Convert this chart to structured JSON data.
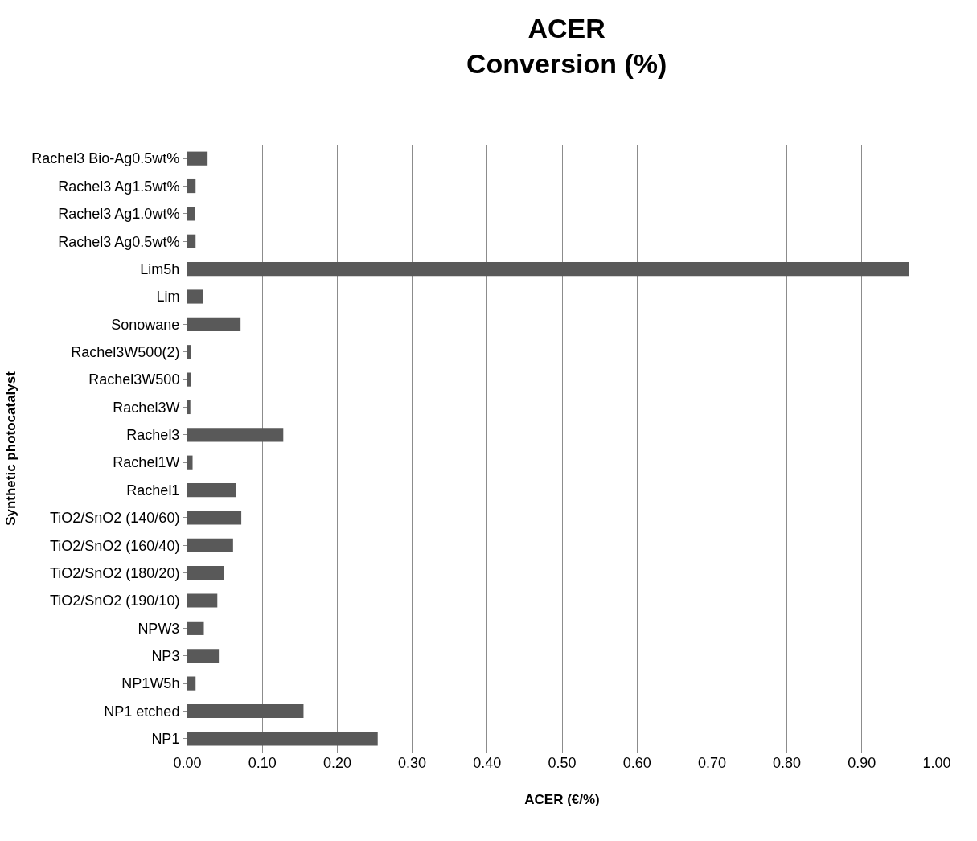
{
  "chart_data": {
    "type": "bar",
    "orientation": "horizontal",
    "title": "ACER\nConversion (%)",
    "xlabel": "ACER (€/%)",
    "ylabel": "Synthetic photocatalyst",
    "categories": [
      "Rachel3 Bio-Ag0.5wt%",
      "Rachel3 Ag1.5wt%",
      "Rachel3 Ag1.0wt%",
      "Rachel3 Ag0.5wt%",
      "Lim5h",
      "Lim",
      "Sonowane",
      "Rachel3W500(2)",
      "Rachel3W500",
      "Rachel3W",
      "Rachel3",
      "Rachel1W",
      "Rachel1",
      "TiO2/SnO2 (140/60)",
      "TiO2/SnO2 (160/40)",
      "TiO2/SnO2 (180/20)",
      "TiO2/SnO2 (190/10)",
      "NPW3",
      "NP3",
      "NP1W5h",
      "NP1 etched",
      "NP1"
    ],
    "values": [
      0.027,
      0.011,
      0.01,
      0.011,
      0.963,
      0.021,
      0.071,
      0.005,
      0.005,
      0.004,
      0.128,
      0.007,
      0.065,
      0.072,
      0.061,
      0.049,
      0.04,
      0.022,
      0.042,
      0.011,
      0.155,
      0.254
    ],
    "color": "#595959",
    "xlim": [
      0,
      1.0
    ],
    "xticks": [
      {
        "value": 0,
        "label": "0.00"
      },
      {
        "value": 0.1,
        "label": "0.10"
      },
      {
        "value": 0.2,
        "label": "0.20"
      },
      {
        "value": 0.3,
        "label": "0.30"
      },
      {
        "value": 0.4,
        "label": "0.40"
      },
      {
        "value": 0.5,
        "label": "0.50"
      },
      {
        "value": 0.6,
        "label": "0.60"
      },
      {
        "value": 0.7,
        "label": "0.70"
      },
      {
        "value": 0.8,
        "label": "0.80"
      },
      {
        "value": 0.9,
        "label": "0.90"
      },
      {
        "value": 1.0,
        "label": "1.00"
      }
    ],
    "grid": "x",
    "legend": false
  }
}
